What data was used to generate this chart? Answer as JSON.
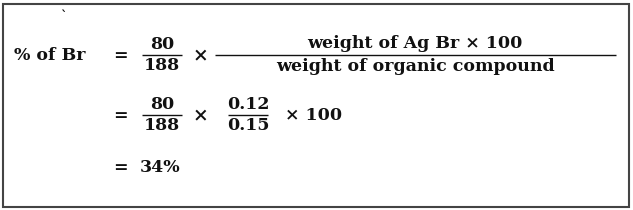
{
  "bg_color": "#ffffff",
  "border_color": "#444444",
  "text_color": "#111111",
  "figsize": [
    6.33,
    2.1
  ],
  "dpi": 100,
  "dot": "`",
  "line1_label": "% of Br",
  "line1_eq": "=",
  "line1_frac1_num": "80",
  "line1_frac1_den": "188",
  "line1_times1": "×",
  "line1_frac2_num": "weight of Ag Br × 100",
  "line1_frac2_den": "weight of organic compound",
  "line2_eq": "=",
  "line2_frac1_num": "80",
  "line2_frac1_den": "188",
  "line2_times1": "×",
  "line2_frac2_num": "0.12",
  "line2_frac2_den": "0.15",
  "line2_times2": "× 100",
  "line3_eq": "=",
  "line3_val": "34%"
}
